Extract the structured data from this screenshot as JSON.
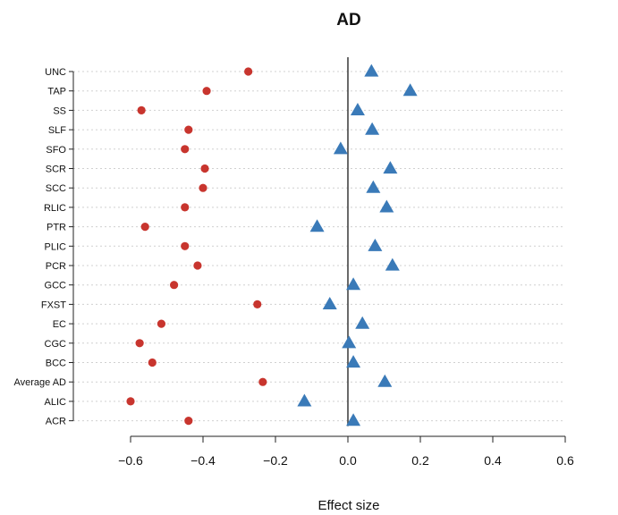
{
  "chart_data": {
    "type": "scatter",
    "title": "AD",
    "xlabel": "Effect size",
    "ylabel": "",
    "xlim": [
      -0.7,
      0.6
    ],
    "xticks": [
      -0.6,
      -0.4,
      -0.2,
      0.0,
      0.2,
      0.4,
      0.6
    ],
    "xtick_labels": [
      "−0.6",
      "−0.4",
      "−0.2",
      "0.0",
      "0.2",
      "0.4",
      "0.6"
    ],
    "categories": [
      "UNC",
      "TAP",
      "SS",
      "SLF",
      "SFO",
      "SCR",
      "SCC",
      "RLIC",
      "PTR",
      "PLIC",
      "PCR",
      "GCC",
      "FXST",
      "EC",
      "CGC",
      "BCC",
      "Average AD",
      "ALIC",
      "ACR"
    ],
    "grid": "horizontal dotted",
    "reference_line": 0,
    "series": [
      {
        "marker": "circle",
        "color": "#c8352e",
        "values": [
          -0.275,
          -0.39,
          -0.57,
          -0.44,
          -0.45,
          -0.395,
          -0.4,
          -0.45,
          -0.56,
          -0.45,
          -0.415,
          -0.48,
          -0.25,
          -0.515,
          -0.575,
          -0.54,
          -0.235,
          -0.6,
          -0.44
        ]
      },
      {
        "marker": "triangle",
        "color": "#3a7ab8",
        "values": [
          0.065,
          0.172,
          0.027,
          0.067,
          -0.02,
          0.117,
          0.07,
          0.107,
          -0.085,
          0.075,
          0.123,
          0.015,
          -0.05,
          0.04,
          0.003,
          0.015,
          0.102,
          -0.12,
          0.015
        ]
      }
    ]
  }
}
